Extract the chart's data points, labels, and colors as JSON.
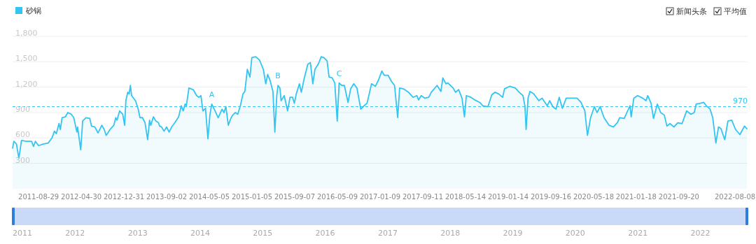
{
  "chart_data": {
    "type": "area",
    "legend": "top left",
    "grid": "y",
    "xlim": [
      "2011-04-02",
      "2022-10-19"
    ],
    "xticks": [
      {
        "value": "2011-08-29",
        "label": "2011-08-29"
      },
      {
        "value": "2012-04-30",
        "label": "2012-04-30"
      },
      {
        "value": "2012-12-31",
        "label": "2012-12-31"
      },
      {
        "value": "2013-09-02",
        "label": "2013-09-02"
      },
      {
        "value": "2014-05-05",
        "label": "2014-05-05"
      },
      {
        "value": "2015-01-05",
        "label": "2015-01-05"
      },
      {
        "value": "2015-09-07",
        "label": "2015-09-07"
      },
      {
        "value": "2016-05-09",
        "label": "2016-05-09"
      },
      {
        "value": "2017-01-09",
        "label": "2017-01-09"
      },
      {
        "value": "2017-09-11",
        "label": "2017-09-11"
      },
      {
        "value": "2018-05-14",
        "label": "2018-05-14"
      },
      {
        "value": "2019-01-14",
        "label": "2019-01-14"
      },
      {
        "value": "2019-09-16",
        "label": "2019-09-16"
      },
      {
        "value": "2020-05-18",
        "label": "2020-05-18"
      },
      {
        "value": "2021-01-18",
        "label": "2021-01-18"
      },
      {
        "value": "2021-09-20",
        "label": "2021-09-20"
      },
      {
        "value": "2022-08-08",
        "label": "2022-08-08"
      }
    ],
    "ylim": [
      0,
      1800
    ],
    "yticks": [
      300,
      600,
      900,
      {
        "value": 1200,
        "label": "1,200"
      },
      {
        "value": 1500,
        "label": "1,500"
      },
      {
        "value": 1800,
        "label": "1,800"
      }
    ],
    "x2lim": [
      "2011",
      "2022-10-04"
    ],
    "x2ticks": [
      "2011",
      "2012",
      "2013",
      "2014",
      "2015",
      "2016",
      "2017",
      "2018",
      "2019",
      "2020",
      "2021",
      "2022"
    ],
    "x": [
      "2011-04-02",
      "2011-04-09",
      "2011-04-24",
      "2011-05-08",
      "2011-05-23",
      "2011-06-21",
      "2011-07-20",
      "2011-07-31",
      "2011-08-11",
      "2011-08-29",
      "2011-09-27",
      "2011-10-23",
      "2011-11-14",
      "2011-11-28",
      "2011-12-09",
      "2011-12-24",
      "2012-01-01",
      "2012-01-11",
      "2012-01-30",
      "2012-02-13",
      "2012-03-04",
      "2012-03-18",
      "2012-04-05",
      "2012-04-09",
      "2012-04-27",
      "2012-05-08",
      "2012-05-27",
      "2012-06-18",
      "2012-06-28",
      "2012-07-17",
      "2012-08-04",
      "2012-08-26",
      "2012-09-09",
      "2012-09-20",
      "2012-10-12",
      "2012-11-03",
      "2012-11-14",
      "2012-11-21",
      "2012-12-06",
      "2012-12-24",
      "2013-01-04",
      "2013-01-11",
      "2013-01-22",
      "2013-01-30",
      "2013-02-06",
      "2013-02-13",
      "2013-03-07",
      "2013-03-22",
      "2013-04-02",
      "2013-04-16",
      "2013-05-01",
      "2013-05-16",
      "2013-05-27",
      "2013-06-03",
      "2013-06-18",
      "2013-07-02",
      "2013-07-17",
      "2013-07-24",
      "2013-08-04",
      "2013-08-18",
      "2013-09-02",
      "2013-09-16",
      "2013-10-01",
      "2013-10-19",
      "2013-11-10",
      "2013-11-25",
      "2013-12-06",
      "2013-12-17",
      "2013-12-24",
      "2014-01-08",
      "2014-02-02",
      "2014-02-21",
      "2014-03-07",
      "2014-03-18",
      "2014-03-29",
      "2014-04-13",
      "2014-04-27",
      "2014-05-08",
      "2014-05-19",
      "2014-06-07",
      "2014-06-25",
      "2014-07-17",
      "2014-07-28",
      "2014-08-08",
      "2014-08-22",
      "2014-09-05",
      "2014-09-16",
      "2014-10-01",
      "2014-10-15",
      "2014-10-30",
      "2014-11-14",
      "2014-11-25",
      "2014-12-09",
      "2014-12-24",
      "2015-01-04",
      "2015-01-26",
      "2015-02-17",
      "2015-03-11",
      "2015-03-25",
      "2015-04-05",
      "2015-04-20",
      "2015-05-05",
      "2015-05-16",
      "2015-05-27",
      "2015-06-03",
      "2015-06-14",
      "2015-06-21",
      "2015-07-09",
      "2015-07-28",
      "2015-08-11",
      "2015-08-26",
      "2015-09-05",
      "2015-09-16",
      "2015-10-04",
      "2015-10-15",
      "2015-10-30",
      "2015-11-21",
      "2015-12-06",
      "2015-12-20",
      "2016-01-01",
      "2016-01-22",
      "2016-02-06",
      "2016-02-21",
      "2016-03-11",
      "2016-03-22",
      "2016-04-09",
      "2016-04-24",
      "2016-05-08",
      "2016-05-19",
      "2016-06-03",
      "2016-06-18",
      "2016-07-09",
      "2016-07-24",
      "2016-08-11",
      "2016-08-29",
      "2016-09-20",
      "2016-10-04",
      "2016-10-26",
      "2016-11-21",
      "2016-12-13",
      "2017-01-01",
      "2017-01-19",
      "2017-02-02",
      "2017-02-24",
      "2017-03-15",
      "2017-04-02",
      "2017-04-20",
      "2017-05-01",
      "2017-05-23",
      "2017-06-21",
      "2017-07-17",
      "2017-08-08",
      "2017-08-18",
      "2017-09-02",
      "2017-09-23",
      "2017-10-15",
      "2017-10-30",
      "2017-12-02",
      "2017-12-24",
      "2018-01-04",
      "2018-01-22",
      "2018-02-02",
      "2018-03-04",
      "2018-03-18",
      "2018-04-05",
      "2018-04-24",
      "2018-05-08",
      "2018-05-19",
      "2018-06-14",
      "2018-07-06",
      "2018-08-04",
      "2018-08-22",
      "2018-09-20",
      "2018-10-12",
      "2018-10-30",
      "2018-11-21",
      "2018-12-13",
      "2018-12-24",
      "2019-01-22",
      "2019-02-24",
      "2019-03-18",
      "2019-04-09",
      "2019-04-20",
      "2019-04-27",
      "2019-05-08",
      "2019-05-19",
      "2019-06-10",
      "2019-07-09",
      "2019-07-28",
      "2019-08-26",
      "2019-09-09",
      "2019-09-27",
      "2019-10-15",
      "2019-11-03",
      "2019-11-21",
      "2019-12-13",
      "2020-01-11",
      "2020-02-13",
      "2020-03-07",
      "2020-03-29",
      "2020-04-13",
      "2020-05-01",
      "2020-05-23",
      "2020-06-07",
      "2020-06-25",
      "2020-07-17",
      "2020-08-15",
      "2020-09-09",
      "2020-10-01",
      "2020-10-15",
      "2020-11-10",
      "2020-11-25",
      "2020-12-13",
      "2020-12-20",
      "2021-01-04",
      "2021-01-26",
      "2021-02-24",
      "2021-03-15",
      "2021-03-25",
      "2021-04-13",
      "2021-04-27",
      "2021-05-19",
      "2021-06-07",
      "2021-06-28",
      "2021-07-13",
      "2021-07-31",
      "2021-08-22",
      "2021-09-13",
      "2021-10-08",
      "2021-11-03",
      "2021-11-28",
      "2021-12-17",
      "2021-12-28",
      "2022-01-22",
      "2022-02-10",
      "2022-02-24",
      "2022-03-18",
      "2022-04-02",
      "2022-04-20",
      "2022-05-05",
      "2022-05-19",
      "2022-06-10",
      "2022-06-28",
      "2022-07-20",
      "2022-08-11",
      "2022-09-05",
      "2022-10-01",
      "2022-10-15"
    ],
    "series": [
      {
        "name": "砂锅",
        "color": "#33c4f2",
        "values": [
          480,
          560,
          530,
          360,
          570,
          560,
          560,
          500,
          560,
          510,
          530,
          540,
          600,
          680,
          650,
          770,
          700,
          840,
          850,
          900,
          880,
          840,
          670,
          730,
          460,
          800,
          840,
          830,
          740,
          730,
          660,
          750,
          700,
          630,
          700,
          750,
          840,
          810,
          920,
          880,
          750,
          1040,
          1140,
          1120,
          1220,
          1100,
          1040,
          950,
          840,
          840,
          780,
          580,
          810,
          750,
          850,
          800,
          780,
          740,
          730,
          680,
          730,
          670,
          730,
          780,
          850,
          980,
          920,
          1000,
          980,
          1190,
          1170,
          1100,
          1080,
          1100,
          920,
          950,
          590,
          870,
          1000,
          920,
          840,
          940,
          900,
          970,
          750,
          830,
          870,
          900,
          880,
          980,
          1120,
          1150,
          1410,
          1320,
          1550,
          1560,
          1520,
          1410,
          1240,
          1350,
          1270,
          1150,
          670,
          1100,
          1220,
          1190,
          1040,
          1100,
          920,
          1080,
          1080,
          1010,
          1120,
          1240,
          1140,
          1290,
          1470,
          1490,
          1240,
          1410,
          1480,
          1560,
          1550,
          1510,
          1320,
          1310,
          1250,
          800,
          1250,
          1220,
          1220,
          1020,
          1180,
          1240,
          1190,
          940,
          970,
          1010,
          1240,
          1210,
          1290,
          1390,
          1340,
          1340,
          1270,
          1220,
          840,
          1190,
          1180,
          1140,
          1080,
          1100,
          1050,
          1100,
          1070,
          1080,
          1140,
          1220,
          1150,
          1310,
          1240,
          1250,
          1190,
          1140,
          1170,
          1070,
          850,
          1100,
          1080,
          1050,
          1020,
          980,
          970,
          1110,
          1140,
          1120,
          1080,
          1180,
          1210,
          1190,
          1140,
          1100,
          980,
          700,
          1070,
          1150,
          1120,
          1040,
          1070,
          980,
          1040,
          970,
          940,
          1080,
          950,
          1070,
          1070,
          1070,
          1020,
          920,
          630,
          840,
          970,
          900,
          970,
          840,
          750,
          730,
          780,
          840,
          830,
          900,
          980,
          850,
          1070,
          1100,
          1070,
          1040,
          1100,
          1010,
          830,
          1000,
          900,
          870,
          740,
          770,
          730,
          780,
          770,
          920,
          880,
          900,
          1000,
          1010,
          1020,
          980,
          940,
          840,
          540,
          730,
          710,
          580,
          800,
          810,
          700,
          640,
          740,
          710
        ]
      }
    ],
    "ref_lines": [
      {
        "axis": "y",
        "value": 970,
        "label": "970",
        "line_style": "dashed"
      }
    ],
    "annotations": [
      {
        "text": "A",
        "x": "2014-05-19",
        "y": 1000
      },
      {
        "text": "B",
        "x": "2015-06-03",
        "y": 1220
      },
      {
        "text": "C",
        "x": "2016-05-19",
        "y": 1250
      },
      "新闻头条",
      "平均值"
    ]
  }
}
